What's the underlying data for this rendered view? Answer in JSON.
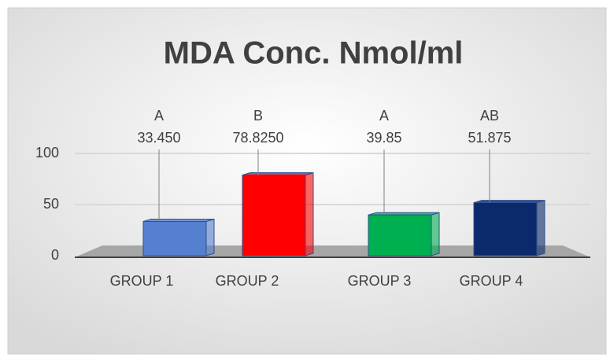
{
  "chart_data": {
    "type": "bar",
    "title": "MDA Conc.   Nmol/ml",
    "categories": [
      "GROUP 1",
      "GROUP 2",
      "GROUP 3",
      "GROUP 4"
    ],
    "values": [
      33.45,
      78.825,
      39.85,
      51.875
    ],
    "value_labels": [
      "33.450",
      "78.8250",
      "39.85",
      "51.875"
    ],
    "annotations": [
      "A",
      "B",
      "A",
      "AB"
    ],
    "colors": [
      "#5580d0",
      "#ff0000",
      "#00b050",
      "#0a2a6b"
    ],
    "ylim": [
      0,
      100
    ],
    "yticks": [
      0,
      50,
      100
    ],
    "grid": true
  }
}
